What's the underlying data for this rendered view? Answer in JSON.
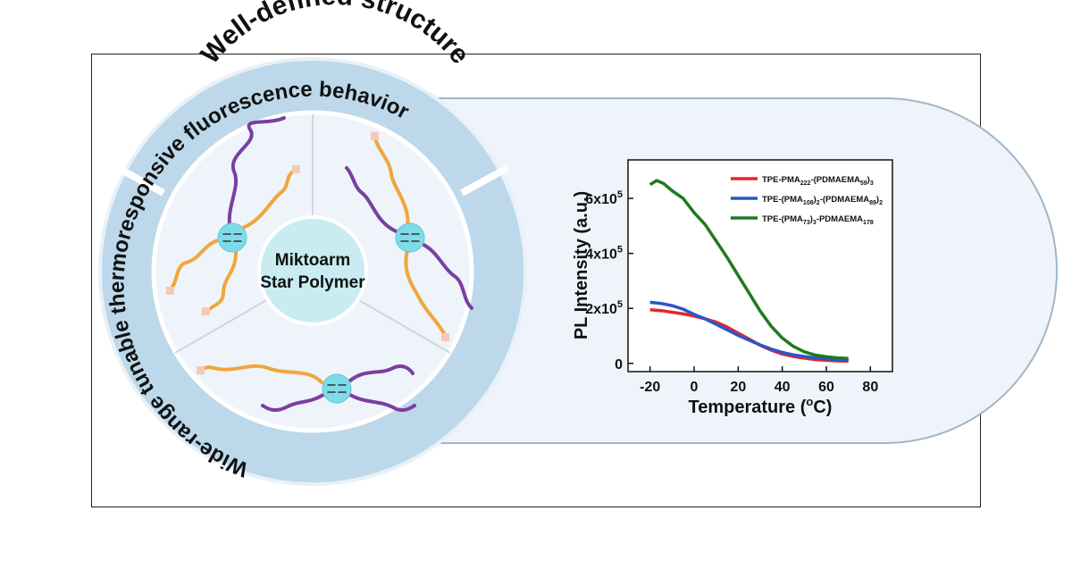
{
  "figure": {
    "ring_top_text": "Well-defined structure",
    "ring_left_text": "Wide-range tunable thermoresponsive fluorescence behavior",
    "center_line1": "Miktoarm",
    "center_line2": "Star Polymer"
  },
  "colors": {
    "ring": "#bcd8ea",
    "sector": "#eef4fa",
    "center": "#c8ecf2",
    "purple_arm": "#7a3fa0",
    "orange_arm": "#f0a63a",
    "end_group": "#f6c8b8",
    "core": "#7fdbe8"
  },
  "chart_data": {
    "type": "line",
    "xlabel": "Temperature (oC)",
    "ylabel": "PL Intensity (a.u.)",
    "xlim": [
      -30,
      90
    ],
    "ylim": [
      -30000,
      740000
    ],
    "xticks": [
      -20,
      0,
      20,
      40,
      60,
      80
    ],
    "yticks": [
      {
        "value": 0,
        "base": "0",
        "exp": ""
      },
      {
        "value": 200000,
        "base": "2x10",
        "exp": "5"
      },
      {
        "value": 400000,
        "base": "4x10",
        "exp": "5"
      },
      {
        "value": 600000,
        "base": "6x10",
        "exp": "5"
      }
    ],
    "series": [
      {
        "name": "TPE-PMA222-(PDMAEMA59)3",
        "label_parts": [
          [
            "TPE-PMA",
            ""
          ],
          [
            "222",
            "sub"
          ],
          [
            "-(PDMAEMA",
            ""
          ],
          [
            "59",
            "sub"
          ],
          [
            ")",
            ""
          ],
          [
            "3",
            "sub"
          ]
        ],
        "color": "#e8232b",
        "x": [
          -20,
          -15,
          -10,
          -5,
          0,
          5,
          10,
          15,
          20,
          25,
          30,
          35,
          40,
          45,
          50,
          55,
          60,
          65,
          70
        ],
        "y": [
          195000,
          192000,
          186000,
          180000,
          172000,
          162000,
          150000,
          132000,
          110000,
          88000,
          66000,
          48000,
          34000,
          25000,
          19000,
          14000,
          11000,
          9000,
          8000
        ]
      },
      {
        "name": "TPE-(PMA108)2-(PDMAEMA89)2",
        "label_parts": [
          [
            "TPE-(PMA",
            ""
          ],
          [
            "108",
            "sub"
          ],
          [
            ")",
            ""
          ],
          [
            "2",
            "sub"
          ],
          [
            "-(PDMAEMA",
            ""
          ],
          [
            "89",
            "sub"
          ],
          [
            ")",
            ""
          ],
          [
            "2",
            "sub"
          ]
        ],
        "color": "#2a56c6",
        "x": [
          -20,
          -15,
          -10,
          -5,
          0,
          5,
          10,
          15,
          20,
          25,
          30,
          35,
          40,
          45,
          50,
          55,
          60,
          65,
          70
        ],
        "y": [
          222000,
          218000,
          210000,
          197000,
          178000,
          162000,
          142000,
          122000,
          102000,
          84000,
          67000,
          52000,
          40000,
          31000,
          25000,
          20000,
          16000,
          13000,
          11000
        ]
      },
      {
        "name": "TPE-(PMA73)3-PDMAEMA178",
        "label_parts": [
          [
            "TPE-(PMA",
            ""
          ],
          [
            "73",
            "sub"
          ],
          [
            ")",
            ""
          ],
          [
            "3",
            "sub"
          ],
          [
            "-PDMAEMA",
            ""
          ],
          [
            "178",
            "sub"
          ]
        ],
        "color": "#1f7a1f",
        "x": [
          -20,
          -17,
          -14,
          -10,
          -5,
          0,
          5,
          10,
          15,
          20,
          25,
          30,
          35,
          40,
          45,
          50,
          55,
          60,
          65,
          70
        ],
        "y": [
          650000,
          665000,
          655000,
          628000,
          600000,
          548000,
          505000,
          445000,
          385000,
          320000,
          255000,
          190000,
          135000,
          92000,
          62000,
          42000,
          30000,
          24000,
          20000,
          18000
        ]
      }
    ]
  }
}
